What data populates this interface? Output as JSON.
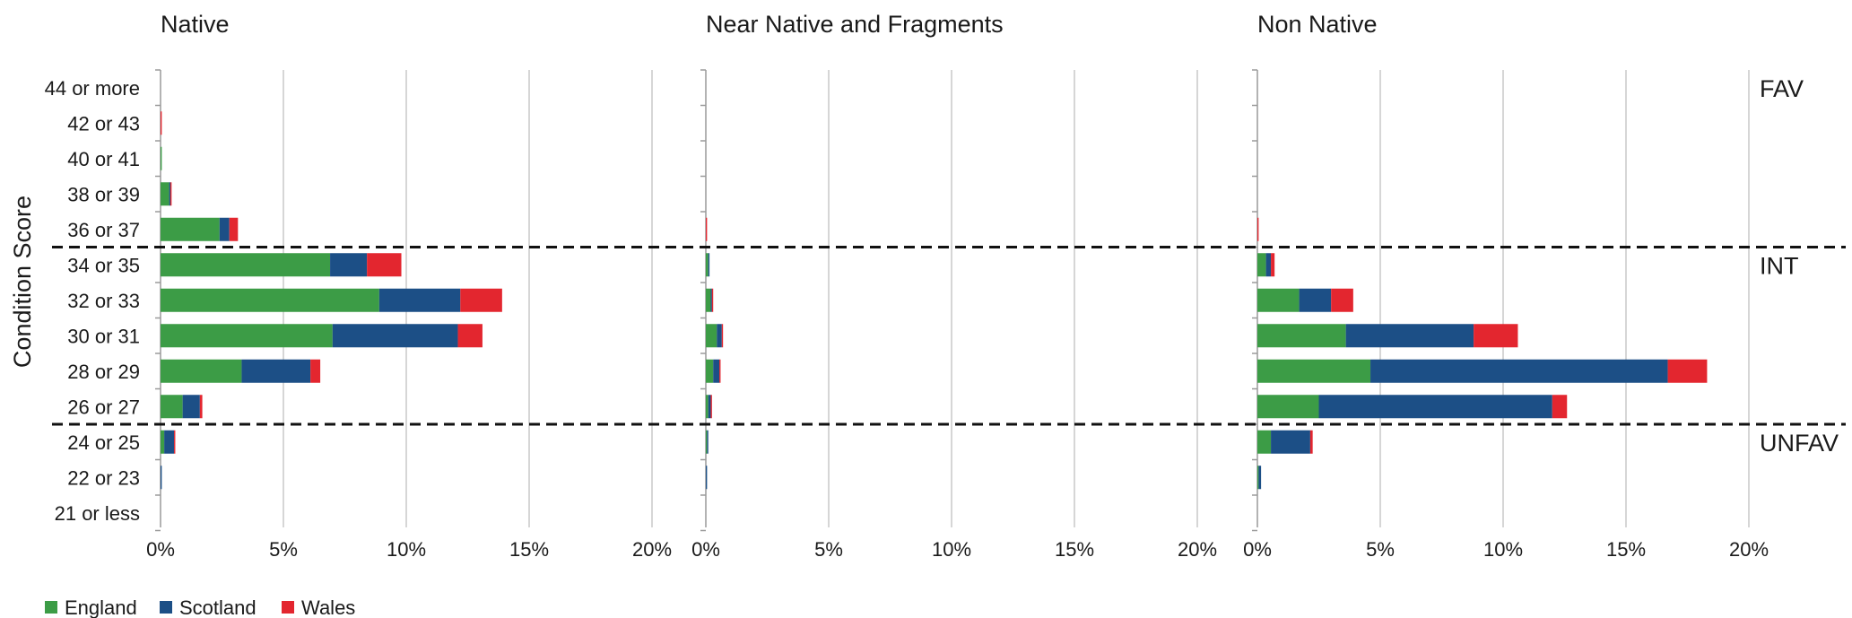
{
  "chart_data": {
    "type": "bar",
    "orientation": "horizontal",
    "stacked": true,
    "ylabel": "Condition Score",
    "categories": [
      "44 or more",
      "42 or 43",
      "40 or 41",
      "38 or 39",
      "36 or 37",
      "34 or 35",
      "32 or 33",
      "30 or 31",
      "28 or 29",
      "26 or 27",
      "24 or 25",
      "22 or 23",
      "21 or less"
    ],
    "xlim": [
      0,
      20
    ],
    "xticks": [
      "0%",
      "5%",
      "10%",
      "15%",
      "20%"
    ],
    "grid": true,
    "legend": {
      "placement": "bottom-left",
      "entries": [
        "England",
        "Scotland",
        "Wales"
      ]
    },
    "colors": {
      "England": "#3c9c46",
      "Scotland": "#1c4f86",
      "Wales": "#e3262f"
    },
    "zones": [
      {
        "label": "FAV",
        "categories": [
          "44 or more",
          "42 or 43",
          "40 or 41",
          "38 or 39",
          "36 or 37"
        ]
      },
      {
        "label": "INT",
        "categories": [
          "34 or 35",
          "32 or 33",
          "30 or 31",
          "28 or 29",
          "26 or 27"
        ]
      },
      {
        "label": "UNFAV",
        "categories": [
          "24 or 25",
          "22 or 23",
          "21 or less"
        ]
      }
    ],
    "panels": [
      {
        "title": "Native",
        "series": [
          {
            "name": "England",
            "values": [
              0,
              0,
              0.05,
              0.35,
              2.4,
              6.9,
              8.9,
              7.0,
              3.3,
              0.9,
              0.15,
              0,
              0
            ]
          },
          {
            "name": "Scotland",
            "values": [
              0,
              0,
              0,
              0.05,
              0.4,
              1.5,
              3.3,
              5.1,
              2.8,
              0.7,
              0.4,
              0.05,
              0
            ]
          },
          {
            "name": "Wales",
            "values": [
              0,
              0.05,
              0,
              0.05,
              0.35,
              1.4,
              1.7,
              1.0,
              0.4,
              0.1,
              0.05,
              0,
              0
            ]
          }
        ]
      },
      {
        "title": "Near Native and Fragments",
        "series": [
          {
            "name": "England",
            "values": [
              0,
              0,
              0,
              0,
              0,
              0.1,
              0.2,
              0.45,
              0.3,
              0.1,
              0.05,
              0,
              0
            ]
          },
          {
            "name": "Scotland",
            "values": [
              0,
              0,
              0,
              0,
              0,
              0.05,
              0.05,
              0.2,
              0.25,
              0.1,
              0.05,
              0.05,
              0
            ]
          },
          {
            "name": "Wales",
            "values": [
              0,
              0,
              0,
              0,
              0.05,
              0,
              0.05,
              0.05,
              0.05,
              0.05,
              0,
              0,
              0
            ]
          }
        ]
      },
      {
        "title": "Non Native",
        "series": [
          {
            "name": "England",
            "values": [
              0,
              0,
              0,
              0,
              0,
              0.35,
              1.7,
              3.6,
              4.6,
              2.5,
              0.55,
              0.05,
              0
            ]
          },
          {
            "name": "Scotland",
            "values": [
              0,
              0,
              0,
              0,
              0,
              0.2,
              1.3,
              5.2,
              12.1,
              9.5,
              1.6,
              0.1,
              0
            ]
          },
          {
            "name": "Wales",
            "values": [
              0,
              0,
              0,
              0,
              0.05,
              0.15,
              0.9,
              1.8,
              1.6,
              0.6,
              0.1,
              0,
              0
            ]
          }
        ]
      }
    ]
  }
}
